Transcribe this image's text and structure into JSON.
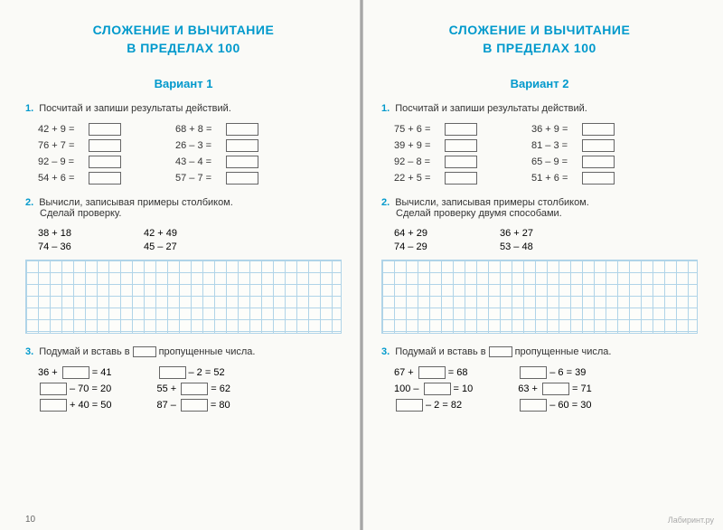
{
  "colors": {
    "accent": "#0099cc",
    "text": "#333333",
    "grid": "#b0d4e8",
    "box_border": "#666666"
  },
  "left": {
    "chapter_l1": "СЛОЖЕНИЕ И ВЫЧИТАНИЕ",
    "chapter_l2": "В ПРЕДЕЛАХ 100",
    "variant": "Вариант 1",
    "t1_num": "1.",
    "t1_text": "Посчитай и запиши результаты действий.",
    "t1_col1": [
      "42 + 9 =",
      "76 + 7 =",
      "92 – 9 =",
      "54 + 6 ="
    ],
    "t1_col2": [
      "68 + 8 =",
      "26 – 3 =",
      "43 – 4 =",
      "57 – 7 ="
    ],
    "t2_num": "2.",
    "t2_text_a": "Вычисли, записывая примеры столбиком.",
    "t2_text_b": "Сделай проверку.",
    "t2_col1": [
      "38 + 18",
      "74 – 36"
    ],
    "t2_col2": [
      "42 + 49",
      "45 – 27"
    ],
    "t3_num": "3.",
    "t3_text_a": "Подумай и вставь в",
    "t3_text_b": "пропущенные числа.",
    "t3_col1": [
      {
        "pre": "36 +",
        "box_first": false,
        "post": "= 41"
      },
      {
        "pre": "",
        "box_first": true,
        "post": "– 70 = 20"
      },
      {
        "pre": "",
        "box_first": true,
        "post": "+ 40 = 50"
      }
    ],
    "t3_col2": [
      {
        "pre": "",
        "box_first": true,
        "post": "– 2 = 52"
      },
      {
        "pre": "55 +",
        "box_first": false,
        "post": "= 62"
      },
      {
        "pre": "87 –",
        "box_first": false,
        "post": "= 80"
      }
    ],
    "page_num": "10"
  },
  "right": {
    "chapter_l1": "СЛОЖЕНИЕ И ВЫЧИТАНИЕ",
    "chapter_l2": "В ПРЕДЕЛАХ 100",
    "variant": "Вариант 2",
    "t1_num": "1.",
    "t1_text": "Посчитай и запиши результаты действий.",
    "t1_col1": [
      "75 + 6 =",
      "39 + 9 =",
      "92 – 8 =",
      "22 + 5 ="
    ],
    "t1_col2": [
      "36 + 9 =",
      "81 – 3 =",
      "65 – 9 =",
      "51 + 6 ="
    ],
    "t2_num": "2.",
    "t2_text_a": "Вычисли, записывая примеры столбиком.",
    "t2_text_b": "Сделай проверку двумя способами.",
    "t2_col1": [
      "64 + 29",
      "74 – 29"
    ],
    "t2_col2": [
      "36 + 27",
      "53 – 48"
    ],
    "t3_num": "3.",
    "t3_text_a": "Подумай и вставь в",
    "t3_text_b": "пропущенные числа.",
    "t3_col1": [
      {
        "pre": "67 +",
        "box_first": false,
        "post": "= 68"
      },
      {
        "pre": "100 –",
        "box_first": false,
        "post": "= 10"
      },
      {
        "pre": "",
        "box_first": true,
        "post": "– 2 = 82"
      }
    ],
    "t3_col2": [
      {
        "pre": "",
        "box_first": true,
        "post": "– 6 = 39"
      },
      {
        "pre": "63 +",
        "box_first": false,
        "post": "= 71"
      },
      {
        "pre": "",
        "box_first": true,
        "post": "– 60 = 30"
      }
    ]
  },
  "watermark": "Лабиринт.ру"
}
